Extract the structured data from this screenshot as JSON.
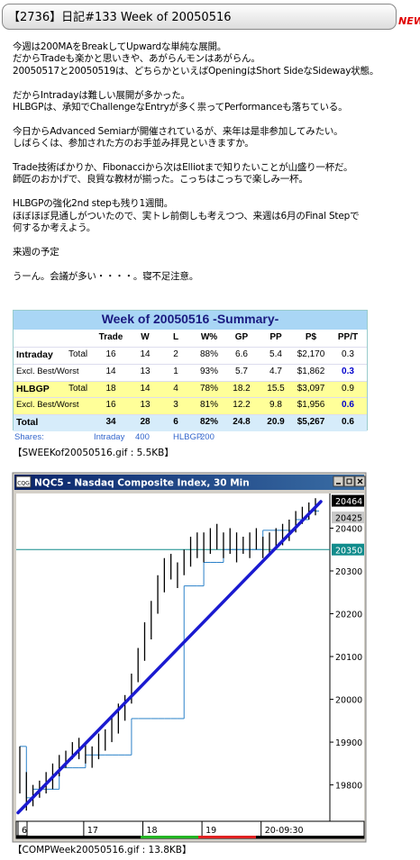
{
  "header": {
    "title": "【2736】日記#133 Week of 20050516",
    "badge": "NEW"
  },
  "body": {
    "paragraphs": [
      [
        "今週は200MAをBreakしてUpwardな単純な展開。",
        "だからTradeも楽かと思いきや、あがらんモンはあがらん。",
        "20050517と20050519は、どちらかといえばOpeningはShort SideなSideway状態。"
      ],
      [
        "だからIntradayは難しい展開が多かった。",
        "HLBGPは、承知でChallengeなEntryが多く祟ってPerformanceも落ちている。"
      ],
      [
        "今日からAdvanced Semiarが開催されているが、来年は是非参加してみたい。",
        "しばらくは、参加された方のお手並み拝見といきますか。"
      ],
      [
        "Trade技術ばかりか、Fibonacciから次はElliotまで知りたいことが山盛り一杯だ。",
        "師匠のおかげで、良質な教材が揃った。こっちはこっちで楽しみ一杯。"
      ],
      [
        "HLBGPの強化2nd stepも残り1週間。",
        "ほぼほぼ見通しがついたので、実トレ前倒しも考えつつ、来週は6月のFinal Stepで",
        "何するか考えよう。"
      ],
      [
        "来週の予定"
      ],
      [
        "うーん。会議が多い・・・・。寝不足注意。"
      ]
    ]
  },
  "table": {
    "title": "Week of 20050516 -Summary-",
    "header": [
      "Trade",
      "W",
      "L",
      "W%",
      "GP",
      "PP",
      "P$",
      "PP/T"
    ],
    "rows": [
      {
        "label": "Intraday",
        "sub": "Total",
        "cells": [
          "16",
          "14",
          "2",
          "88%",
          "6.6",
          "5.4",
          "$2,170",
          "0.3"
        ]
      },
      {
        "label": "Excl. Best/Worst",
        "cells": [
          "14",
          "13",
          "1",
          "93%",
          "5.7",
          "4.7",
          "$1,862",
          "0.3"
        ]
      },
      {
        "label": "HLBGP",
        "sub": "Total",
        "cells": [
          "18",
          "14",
          "4",
          "78%",
          "18.2",
          "15.5",
          "$3,097",
          "0.9"
        ]
      },
      {
        "label": "Excl. Best/Worst",
        "cells": [
          "16",
          "13",
          "3",
          "81%",
          "12.2",
          "9.8",
          "$1,956",
          "0.6"
        ]
      },
      {
        "label": "Total",
        "cells": [
          "34",
          "28",
          "6",
          "82%",
          "24.8",
          "20.9",
          "$5,267",
          "0.6"
        ]
      }
    ],
    "shares": [
      "Shares:",
      "Intraday",
      "400",
      "HLBGP",
      "200"
    ],
    "caption": "【SWEEKof20050516.gif : 5.5KB】"
  },
  "chart": {
    "type": "bar",
    "icon": "CQG",
    "title": "NQC5 - Nasdaq Composite Index, 30 Min",
    "categories": [
      "6",
      null,
      null,
      null,
      null,
      null,
      null,
      null,
      null,
      null,
      "17",
      null,
      null,
      null,
      null,
      null,
      null,
      null,
      null,
      "18",
      null,
      null,
      null,
      null,
      null,
      null,
      null,
      null,
      "19",
      null,
      null,
      null,
      null,
      null,
      null,
      null,
      null,
      "20-09:30",
      null,
      null,
      null,
      null,
      null,
      null,
      null,
      null
    ],
    "high": [
      19890,
      19830,
      19800,
      19810,
      19830,
      19850,
      19870,
      19880,
      19900,
      19910,
      19900,
      19890,
      19920,
      19930,
      19960,
      19990,
      20010,
      20060,
      20120,
      20180,
      20230,
      20290,
      20330,
      20340,
      20320,
      20350,
      20380,
      20390,
      20390,
      20400,
      20410,
      20390,
      20400,
      20390,
      20380,
      20390,
      20400,
      20380,
      20390,
      20400,
      20410,
      20420,
      20440,
      20450,
      20460,
      20470
    ],
    "low": [
      19780,
      19740,
      19750,
      19770,
      19780,
      19790,
      19820,
      19840,
      19860,
      19860,
      19850,
      19840,
      19860,
      19880,
      19900,
      19920,
      19950,
      19990,
      20040,
      20090,
      20140,
      20200,
      20250,
      20280,
      20260,
      20290,
      20310,
      20330,
      20320,
      20340,
      20350,
      20330,
      20340,
      20320,
      20340,
      20330,
      20350,
      20330,
      20340,
      20350,
      20360,
      20370,
      20390,
      20410,
      20420,
      20430
    ],
    "stop": [
      19890,
      19770,
      19790,
      19790,
      19790,
      19790,
      19840,
      19840,
      19840,
      19840,
      19870,
      19870,
      19870,
      19870,
      19870,
      19870,
      19870,
      19955,
      19955,
      19955,
      19955,
      19955,
      19955,
      19955,
      19955,
      20265,
      20265,
      20265,
      20320,
      20320,
      20320,
      20350,
      20350,
      20350,
      20350,
      20350,
      20350,
      20395,
      20395,
      20395,
      20395,
      20395,
      20420,
      20420,
      20440,
      20440
    ],
    "trend": [
      19735,
      20462
    ],
    "ylim": [
      19715,
      20481
    ],
    "yticks": [
      19800,
      19900,
      20000,
      20100,
      20200,
      20300,
      20400
    ],
    "price_tags": [
      20464,
      20425,
      20350
    ],
    "caption": "【COMPWeek20050516.gif : 13.8KB】"
  }
}
